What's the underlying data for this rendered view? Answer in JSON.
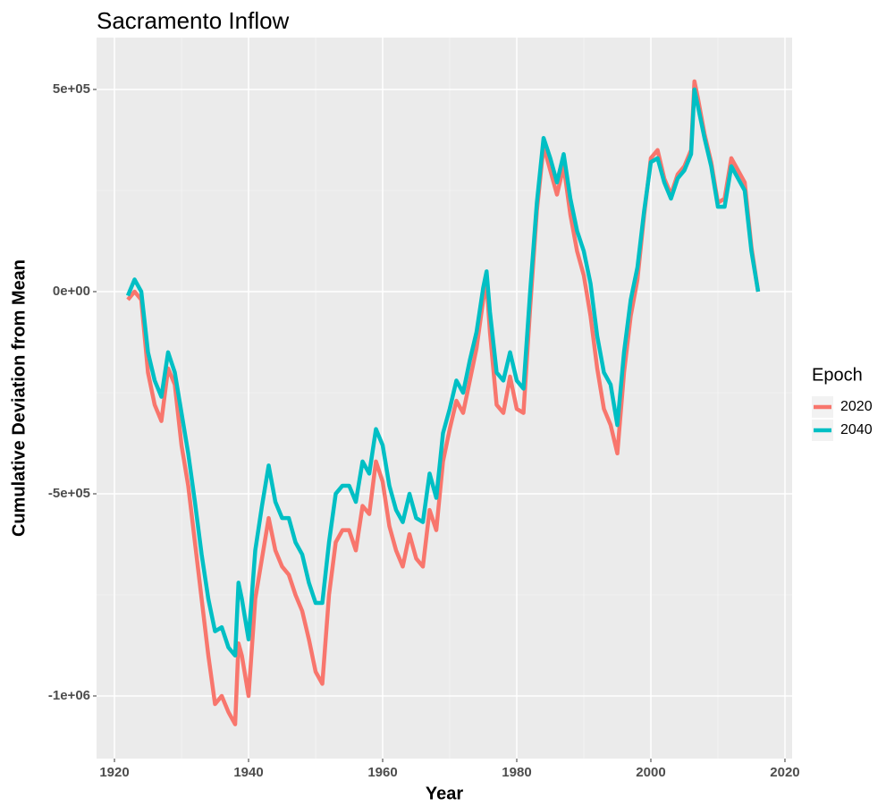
{
  "chart_data": {
    "type": "line",
    "title": "Sacramento Inflow",
    "x_label": "Year",
    "y_label": "Cumulative Deviation from Mean",
    "legend_title": "Epoch",
    "legend": "right",
    "grid": true,
    "xlim": [
      1917.33,
      2021.07
    ],
    "xticks": [
      1920,
      1940,
      1960,
      1980,
      2000,
      2020
    ],
    "ylim": [
      -1154900,
      628300
    ],
    "yticks": [
      {
        "value": -1000000,
        "label": "-1e+06"
      },
      {
        "value": -500000,
        "label": "-5e+05"
      },
      {
        "value": 0,
        "label": "0e+00"
      },
      {
        "value": 500000,
        "label": "5e+05"
      }
    ],
    "x": [
      1922,
      1923,
      1924,
      1925,
      1926,
      1927,
      1928,
      1929,
      1930,
      1931,
      1932,
      1933,
      1934,
      1935,
      1936,
      1937,
      1938,
      1938.5,
      1939,
      1940,
      1941,
      1942,
      1943,
      1944,
      1945,
      1946,
      1947,
      1948,
      1949,
      1950,
      1951,
      1952,
      1953,
      1954,
      1955,
      1956,
      1957,
      1958,
      1959,
      1960,
      1961,
      1962,
      1963,
      1964,
      1965,
      1966,
      1967,
      1968,
      1969,
      1970,
      1971,
      1972,
      1973,
      1974,
      1975,
      1975.5,
      1976,
      1977,
      1978,
      1979,
      1980,
      1981,
      1982,
      1983,
      1984,
      1985,
      1986,
      1987,
      1988,
      1989,
      1990,
      1991,
      1992,
      1993,
      1994,
      1995,
      1996,
      1997,
      1998,
      1999,
      2000,
      2001,
      2002,
      2003,
      2004,
      2005,
      2006,
      2006.5,
      2007,
      2008,
      2009,
      2010,
      2011,
      2012,
      2013,
      2014,
      2015,
      2016
    ],
    "series": [
      {
        "name": "2020",
        "color": "#f8766d",
        "values": [
          -20000,
          0,
          -20000,
          -200000,
          -280000,
          -320000,
          -190000,
          -230000,
          -380000,
          -480000,
          -620000,
          -760000,
          -900000,
          -1020000,
          -1000000,
          -1040000,
          -1070000,
          -870000,
          -900000,
          -1000000,
          -760000,
          -660000,
          -560000,
          -640000,
          -680000,
          -700000,
          -750000,
          -790000,
          -860000,
          -940000,
          -970000,
          -750000,
          -620000,
          -590000,
          -590000,
          -640000,
          -530000,
          -550000,
          -420000,
          -470000,
          -580000,
          -640000,
          -680000,
          -600000,
          -660000,
          -680000,
          -540000,
          -590000,
          -420000,
          -340000,
          -270000,
          -300000,
          -220000,
          -140000,
          -20000,
          20000,
          -100000,
          -280000,
          -300000,
          -210000,
          -290000,
          -300000,
          -40000,
          200000,
          360000,
          300000,
          240000,
          310000,
          190000,
          100000,
          40000,
          -60000,
          -190000,
          -290000,
          -330000,
          -400000,
          -200000,
          -60000,
          30000,
          190000,
          330000,
          350000,
          280000,
          240000,
          290000,
          310000,
          350000,
          520000,
          480000,
          390000,
          320000,
          220000,
          230000,
          330000,
          300000,
          270000,
          110000,
          0
        ]
      },
      {
        "name": "2040",
        "color": "#00bfc4",
        "values": [
          -10000,
          30000,
          0,
          -150000,
          -220000,
          -260000,
          -150000,
          -200000,
          -300000,
          -400000,
          -520000,
          -650000,
          -760000,
          -840000,
          -830000,
          -880000,
          -900000,
          -720000,
          -760000,
          -860000,
          -640000,
          -530000,
          -430000,
          -520000,
          -560000,
          -560000,
          -620000,
          -650000,
          -720000,
          -770000,
          -770000,
          -620000,
          -500000,
          -480000,
          -480000,
          -520000,
          -420000,
          -450000,
          -340000,
          -380000,
          -480000,
          -540000,
          -570000,
          -500000,
          -560000,
          -570000,
          -450000,
          -510000,
          -350000,
          -290000,
          -220000,
          -250000,
          -170000,
          -100000,
          10000,
          50000,
          -50000,
          -200000,
          -220000,
          -150000,
          -220000,
          -240000,
          0,
          220000,
          380000,
          330000,
          270000,
          340000,
          230000,
          150000,
          100000,
          20000,
          -110000,
          -200000,
          -230000,
          -330000,
          -150000,
          -20000,
          60000,
          200000,
          320000,
          330000,
          270000,
          230000,
          280000,
          300000,
          340000,
          500000,
          460000,
          380000,
          310000,
          210000,
          210000,
          310000,
          280000,
          250000,
          100000,
          0
        ]
      }
    ]
  }
}
